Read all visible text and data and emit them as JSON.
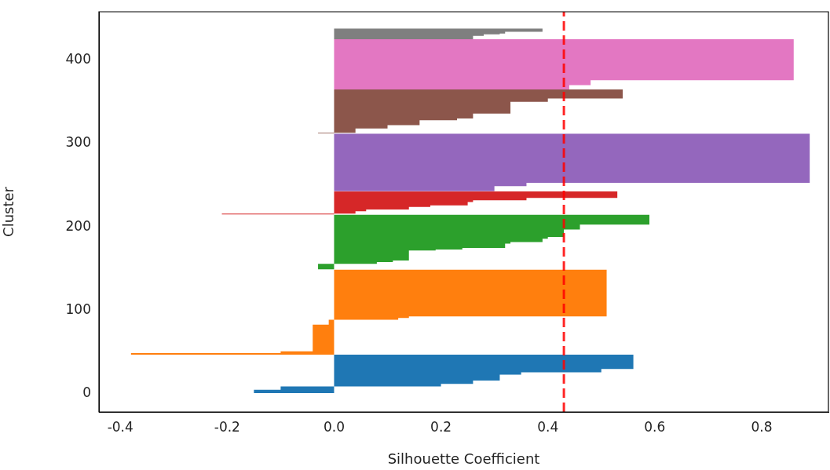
{
  "chart_data": {
    "type": "area",
    "orientation": "horizontal",
    "xlabel": "Silhouette Coefficient",
    "ylabel": "Cluster",
    "xlim": [
      -0.44,
      0.925
    ],
    "ylim": [
      -21.6,
      458
    ],
    "xticks": [
      -0.4,
      -0.2,
      {
        "value": 0,
        "label": "0.0"
      },
      0.2,
      0.4,
      0.6,
      0.8
    ],
    "yticks": [
      0,
      100,
      200,
      300,
      400
    ],
    "series": [
      {
        "color": "#1f77b4",
        "x": [
          1,
          5,
          5,
          9,
          9,
          12,
          12,
          16,
          16,
          23,
          23,
          26,
          26,
          30,
          30,
          47
        ],
        "values": [
          -0.15,
          -0.15,
          -0.1,
          -0.1,
          0.2,
          0.2,
          0.26,
          0.26,
          0.31,
          0.31,
          0.35,
          0.35,
          0.5,
          0.5,
          0.56,
          0.56
        ]
      },
      {
        "color": "#ff7f0e",
        "x": [
          47,
          49,
          49,
          51,
          51,
          83,
          83,
          89,
          89,
          91,
          91,
          93,
          93,
          149
        ],
        "values": [
          -0.38,
          -0.38,
          -0.1,
          -0.1,
          -0.04,
          -0.04,
          -0.01,
          -0.01,
          0.12,
          0.12,
          0.14,
          0.14,
          0.51,
          0.51
        ]
      },
      {
        "color": "#2ca02c",
        "x": [
          149,
          156,
          156,
          158,
          158,
          160,
          160,
          172,
          172,
          173,
          173,
          175,
          175,
          180,
          180,
          182,
          182,
          186,
          186,
          188,
          188,
          197,
          197,
          203,
          203,
          215
        ],
        "values": [
          -0.03,
          -0.03,
          0.08,
          0.08,
          0.11,
          0.11,
          0.14,
          0.14,
          0.19,
          0.19,
          0.24,
          0.24,
          0.32,
          0.32,
          0.33,
          0.33,
          0.39,
          0.39,
          0.4,
          0.4,
          0.43,
          0.43,
          0.46,
          0.46,
          0.59,
          0.59
        ]
      },
      {
        "color": "#d62728",
        "x": [
          215,
          216,
          216,
          219,
          219,
          221,
          221,
          224,
          224,
          226,
          226,
          230,
          230,
          232,
          232,
          235,
          235,
          243
        ],
        "values": [
          -0.21,
          -0.21,
          0.04,
          0.04,
          0.06,
          0.06,
          0.14,
          0.14,
          0.18,
          0.18,
          0.25,
          0.25,
          0.26,
          0.26,
          0.36,
          0.36,
          0.53,
          0.53
        ]
      },
      {
        "color": "#9467bd",
        "x": [
          243,
          249,
          249,
          253,
          253,
          312
        ],
        "values": [
          0.3,
          0.3,
          0.36,
          0.36,
          0.89,
          0.89
        ]
      },
      {
        "color": "#8c564b",
        "x": [
          312,
          313,
          313,
          318,
          318,
          322,
          322,
          328,
          328,
          330,
          330,
          336,
          336,
          350,
          350,
          354,
          354,
          365
        ],
        "values": [
          -0.03,
          -0.03,
          0.04,
          0.04,
          0.1,
          0.1,
          0.16,
          0.16,
          0.23,
          0.23,
          0.26,
          0.26,
          0.33,
          0.33,
          0.4,
          0.4,
          0.54,
          0.54
        ]
      },
      {
        "color": "#e377c2",
        "x": [
          365,
          370,
          370,
          376,
          376,
          425
        ],
        "values": [
          0.44,
          0.44,
          0.48,
          0.48,
          0.86,
          0.86
        ]
      },
      {
        "color": "#7f7f7f",
        "x": [
          425,
          429,
          429,
          431,
          431,
          432,
          432,
          434,
          434,
          438
        ],
        "values": [
          0.26,
          0.26,
          0.28,
          0.28,
          0.31,
          0.31,
          0.32,
          0.32,
          0.39,
          0.39
        ]
      }
    ],
    "ref_lines": [
      {
        "axis": "x",
        "value": 0.43,
        "color": "#ff0000",
        "line_style": "dashed"
      }
    ]
  }
}
